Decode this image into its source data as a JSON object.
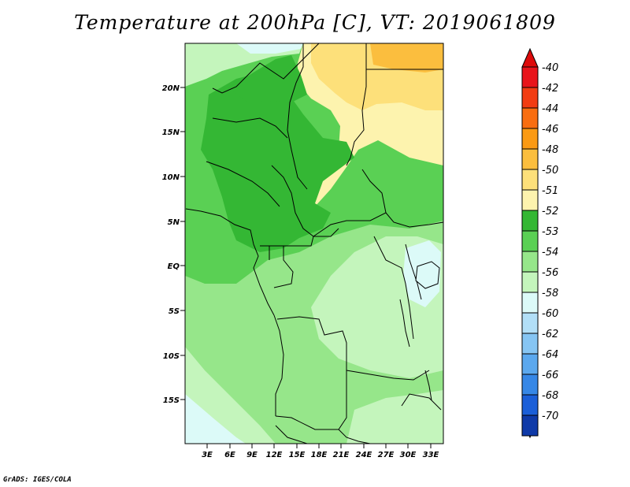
{
  "title": "Temperature at 200hPa [C], VT: 2019061809",
  "credit": "GrADS: IGES/COLA",
  "lat_labels": [
    "20N",
    "15N",
    "10N",
    "5N",
    "EQ",
    "5S",
    "10S",
    "15S"
  ],
  "lon_labels": [
    "3E",
    "6E",
    "9E",
    "12E",
    "15E",
    "18E",
    "21E",
    "24E",
    "27E",
    "30E",
    "33E"
  ],
  "legend": [
    {
      "label": "-40",
      "color": "#e8141a"
    },
    {
      "label": "-42",
      "color": "#f23c12"
    },
    {
      "label": "-44",
      "color": "#f86d10"
    },
    {
      "label": "-46",
      "color": "#fb9a14"
    },
    {
      "label": "-48",
      "color": "#fbbe3e"
    },
    {
      "label": "-50",
      "color": "#fde07a"
    },
    {
      "label": "-51",
      "color": "#fdf3ae"
    },
    {
      "label": "-52",
      "color": "#34b734"
    },
    {
      "label": "-53",
      "color": "#5ad054"
    },
    {
      "label": "-54",
      "color": "#96e68a"
    },
    {
      "label": "-56",
      "color": "#c4f5bc"
    },
    {
      "label": "-58",
      "color": "#dcfaf8"
    },
    {
      "label": "-60",
      "color": "#b2dff7"
    },
    {
      "label": "-62",
      "color": "#86c5f3"
    },
    {
      "label": "-64",
      "color": "#5ba8ee"
    },
    {
      "label": "-66",
      "color": "#3687e6"
    },
    {
      "label": "-68",
      "color": "#1b5fd8"
    },
    {
      "label": "-70",
      "color": "#0f3aa8"
    }
  ],
  "legend_ends": {
    "top": "#dd0a0a",
    "bottom": "#dcdcf6"
  }
}
